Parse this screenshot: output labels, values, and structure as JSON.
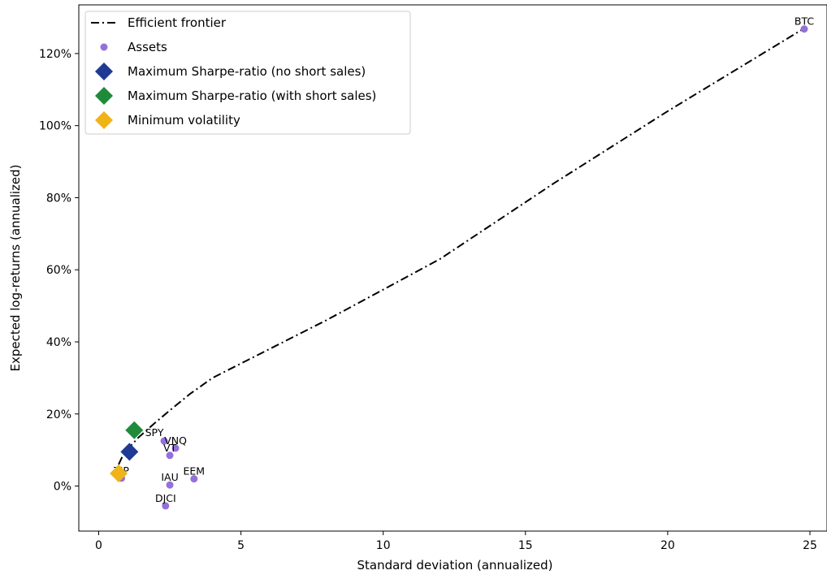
{
  "chart_data": {
    "type": "scatter",
    "xlabel": "Standard deviation (annualized)",
    "ylabel": "Expected log-returns (annualized)",
    "xlim": [
      -0.7,
      25.6
    ],
    "ylim": [
      -0.125,
      1.335
    ],
    "x_ticks": [
      0,
      5,
      10,
      15,
      20,
      25
    ],
    "x_tick_labels": [
      "0",
      "5",
      "10",
      "15",
      "20",
      "25"
    ],
    "y_ticks": [
      0,
      0.2,
      0.4,
      0.6,
      0.8,
      1.0,
      1.2
    ],
    "y_tick_labels": [
      "0%",
      "20%",
      "40%",
      "60%",
      "80%",
      "100%",
      "120%"
    ],
    "grid": false,
    "legend_position": "upper-left",
    "legend": [
      {
        "label": "Efficient frontier",
        "marker": "dashdot-line",
        "color": "#000000"
      },
      {
        "label": "Assets",
        "marker": "circle",
        "color": "#9370db"
      },
      {
        "label": "Maximum Sharpe-ratio (no short sales)",
        "marker": "diamond",
        "color": "#1f3a93"
      },
      {
        "label": "Maximum Sharpe-ratio (with short sales)",
        "marker": "diamond",
        "color": "#1e8a3a"
      },
      {
        "label": "Minimum volatility",
        "marker": "diamond",
        "color": "#f0b419"
      }
    ],
    "efficient_frontier": {
      "name": "Efficient frontier",
      "color": "#000000",
      "x": [
        0.7,
        0.85,
        1.05,
        1.4,
        1.9,
        2.5,
        3.2,
        4.0,
        5.5,
        8.0,
        12.0,
        16.0,
        20.0,
        24.8
      ],
      "y": [
        0.06,
        0.085,
        0.105,
        0.135,
        0.17,
        0.21,
        0.255,
        0.3,
        0.36,
        0.46,
        0.63,
        0.84,
        1.04,
        1.27
      ]
    },
    "assets": [
      {
        "label": "BTC",
        "x": 24.8,
        "y": 1.268,
        "label_anchor": "top"
      },
      {
        "label": "SPY",
        "x": 2.3,
        "y": 0.125,
        "label_anchor": "right"
      },
      {
        "label": "VNQ",
        "x": 2.7,
        "y": 0.105,
        "label_anchor": "top"
      },
      {
        "label": "VT",
        "x": 2.5,
        "y": 0.085,
        "label_anchor": "top"
      },
      {
        "label": "TIP",
        "x": 0.8,
        "y": 0.022,
        "label_anchor": "top"
      },
      {
        "label": "IAU",
        "x": 2.5,
        "y": 0.003,
        "label_anchor": "top"
      },
      {
        "label": "EEM",
        "x": 3.35,
        "y": 0.02,
        "label_anchor": "top"
      },
      {
        "label": "DJCI",
        "x": 2.35,
        "y": -0.055,
        "label_anchor": "top"
      }
    ],
    "assets_color": "#9370db",
    "special_points": [
      {
        "name": "Maximum Sharpe-ratio (no short sales)",
        "x": 1.08,
        "y": 0.095,
        "color": "#1f3a93"
      },
      {
        "name": "Maximum Sharpe-ratio (with short sales)",
        "x": 1.25,
        "y": 0.155,
        "color": "#1e8a3a"
      },
      {
        "name": "Minimum volatility",
        "x": 0.7,
        "y": 0.035,
        "color": "#f0b419"
      }
    ]
  }
}
